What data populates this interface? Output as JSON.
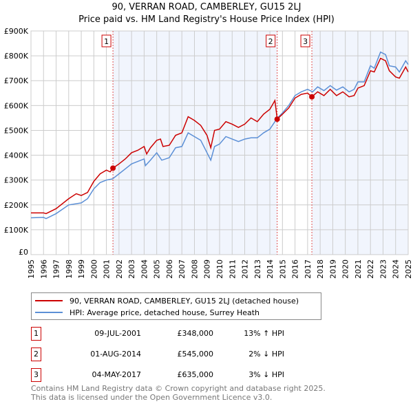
{
  "title": "90, VERRAN ROAD, CAMBERLEY, GU15 2LJ",
  "subtitle": "Price paid vs. HM Land Registry's House Price Index (HPI)",
  "chart_data": {
    "type": "line",
    "xlim": [
      1995,
      2025
    ],
    "ylim": [
      0,
      900000
    ],
    "yticks": [
      {
        "v": 0,
        "l": "£0"
      },
      {
        "v": 100000,
        "l": "£100K"
      },
      {
        "v": 200000,
        "l": "£200K"
      },
      {
        "v": 300000,
        "l": "£300K"
      },
      {
        "v": 400000,
        "l": "£400K"
      },
      {
        "v": 500000,
        "l": "£500K"
      },
      {
        "v": 600000,
        "l": "£600K"
      },
      {
        "v": 700000,
        "l": "£700K"
      },
      {
        "v": 800000,
        "l": "£800K"
      },
      {
        "v": 900000,
        "l": "£900K"
      }
    ],
    "xticks": [
      "1995",
      "1996",
      "1997",
      "1998",
      "1999",
      "2000",
      "2001",
      "2002",
      "2003",
      "2004",
      "2005",
      "2006",
      "2007",
      "2008",
      "2009",
      "2010",
      "2011",
      "2012",
      "2013",
      "2014",
      "2015",
      "2016",
      "2017",
      "2018",
      "2019",
      "2020",
      "2021",
      "2022",
      "2023",
      "2024",
      "2025"
    ],
    "grid": true,
    "series": [
      {
        "name": "90, VERRAN ROAD, CAMBERLEY, GU15 2LJ (detached house)",
        "color": "#cc0000",
        "points": [
          [
            1995,
            168000
          ],
          [
            1996,
            168000
          ],
          [
            1996.2,
            165000
          ],
          [
            1997,
            185000
          ],
          [
            1998,
            225000
          ],
          [
            1998.6,
            245000
          ],
          [
            1999,
            238000
          ],
          [
            1999.5,
            250000
          ],
          [
            2000,
            295000
          ],
          [
            2000.5,
            325000
          ],
          [
            2001,
            340000
          ],
          [
            2001.3,
            333000
          ],
          [
            2001.52,
            348000
          ],
          [
            2002,
            365000
          ],
          [
            2002.5,
            385000
          ],
          [
            2003,
            410000
          ],
          [
            2003.5,
            420000
          ],
          [
            2004,
            435000
          ],
          [
            2004.2,
            405000
          ],
          [
            2004.5,
            430000
          ],
          [
            2005,
            460000
          ],
          [
            2005.3,
            465000
          ],
          [
            2005.5,
            435000
          ],
          [
            2006,
            440000
          ],
          [
            2006.5,
            480000
          ],
          [
            2007,
            490000
          ],
          [
            2007.5,
            555000
          ],
          [
            2008,
            540000
          ],
          [
            2008.5,
            520000
          ],
          [
            2009,
            480000
          ],
          [
            2009.3,
            430000
          ],
          [
            2009.6,
            500000
          ],
          [
            2010,
            505000
          ],
          [
            2010.5,
            535000
          ],
          [
            2011,
            525000
          ],
          [
            2011.5,
            512000
          ],
          [
            2012,
            525000
          ],
          [
            2012.5,
            550000
          ],
          [
            2013,
            535000
          ],
          [
            2013.5,
            565000
          ],
          [
            2014,
            585000
          ],
          [
            2014.4,
            620000
          ],
          [
            2014.55,
            560000
          ],
          [
            2014.58,
            545000
          ],
          [
            2015,
            565000
          ],
          [
            2015.5,
            590000
          ],
          [
            2016,
            630000
          ],
          [
            2016.5,
            645000
          ],
          [
            2017,
            650000
          ],
          [
            2017.34,
            635000
          ],
          [
            2017.8,
            655000
          ],
          [
            2018.3,
            640000
          ],
          [
            2018.8,
            665000
          ],
          [
            2019.3,
            640000
          ],
          [
            2019.8,
            655000
          ],
          [
            2020.3,
            635000
          ],
          [
            2020.7,
            640000
          ],
          [
            2021,
            670000
          ],
          [
            2021.5,
            680000
          ],
          [
            2022,
            740000
          ],
          [
            2022.3,
            735000
          ],
          [
            2022.8,
            790000
          ],
          [
            2023.2,
            780000
          ],
          [
            2023.5,
            740000
          ],
          [
            2024,
            715000
          ],
          [
            2024.3,
            710000
          ],
          [
            2024.8,
            755000
          ],
          [
            2025,
            735000
          ]
        ]
      },
      {
        "name": "HPI: Average price, detached house, Surrey Heath",
        "color": "#5b8fd6",
        "points": [
          [
            1995,
            148000
          ],
          [
            1996,
            150000
          ],
          [
            1996.2,
            145000
          ],
          [
            1997,
            165000
          ],
          [
            1998,
            200000
          ],
          [
            1999,
            208000
          ],
          [
            1999.5,
            225000
          ],
          [
            2000,
            265000
          ],
          [
            2000.5,
            290000
          ],
          [
            2001,
            300000
          ],
          [
            2001.5,
            305000
          ],
          [
            2002,
            325000
          ],
          [
            2002.5,
            345000
          ],
          [
            2003,
            365000
          ],
          [
            2003.5,
            375000
          ],
          [
            2004,
            385000
          ],
          [
            2004.1,
            358000
          ],
          [
            2004.5,
            380000
          ],
          [
            2005,
            410000
          ],
          [
            2005.4,
            380000
          ],
          [
            2006,
            390000
          ],
          [
            2006.5,
            430000
          ],
          [
            2007,
            435000
          ],
          [
            2007.5,
            490000
          ],
          [
            2008,
            475000
          ],
          [
            2008.5,
            460000
          ],
          [
            2009,
            410000
          ],
          [
            2009.3,
            380000
          ],
          [
            2009.6,
            435000
          ],
          [
            2010,
            445000
          ],
          [
            2010.5,
            475000
          ],
          [
            2011,
            465000
          ],
          [
            2011.5,
            455000
          ],
          [
            2012,
            465000
          ],
          [
            2012.5,
            470000
          ],
          [
            2013,
            470000
          ],
          [
            2013.5,
            490000
          ],
          [
            2014,
            505000
          ],
          [
            2014.6,
            550000
          ],
          [
            2015,
            570000
          ],
          [
            2015.5,
            600000
          ],
          [
            2016,
            640000
          ],
          [
            2016.5,
            655000
          ],
          [
            2017,
            665000
          ],
          [
            2017.4,
            655000
          ],
          [
            2017.8,
            675000
          ],
          [
            2018.3,
            660000
          ],
          [
            2018.8,
            680000
          ],
          [
            2019.3,
            662000
          ],
          [
            2019.8,
            675000
          ],
          [
            2020.3,
            655000
          ],
          [
            2020.7,
            665000
          ],
          [
            2021,
            695000
          ],
          [
            2021.5,
            695000
          ],
          [
            2022,
            760000
          ],
          [
            2022.3,
            750000
          ],
          [
            2022.8,
            815000
          ],
          [
            2023.2,
            805000
          ],
          [
            2023.5,
            760000
          ],
          [
            2024,
            755000
          ],
          [
            2024.3,
            735000
          ],
          [
            2024.8,
            780000
          ],
          [
            2025,
            765000
          ]
        ]
      }
    ],
    "sales": [
      {
        "label": "1",
        "x": 2001.52,
        "y": 348000
      },
      {
        "label": "2",
        "x": 2014.58,
        "y": 545000
      },
      {
        "label": "3",
        "x": 2017.34,
        "y": 635000
      }
    ]
  },
  "transactions": [
    {
      "num": "1",
      "date": "09-JUL-2001",
      "price": "£348,000",
      "hpi": "13% ↑ HPI"
    },
    {
      "num": "2",
      "date": "01-AUG-2014",
      "price": "£545,000",
      "hpi": "2% ↓ HPI"
    },
    {
      "num": "3",
      "date": "04-MAY-2017",
      "price": "£635,000",
      "hpi": "3% ↓ HPI"
    }
  ],
  "footer": [
    "Contains HM Land Registry data © Crown copyright and database right 2025.",
    "This data is licensed under the Open Government Licence v3.0."
  ]
}
